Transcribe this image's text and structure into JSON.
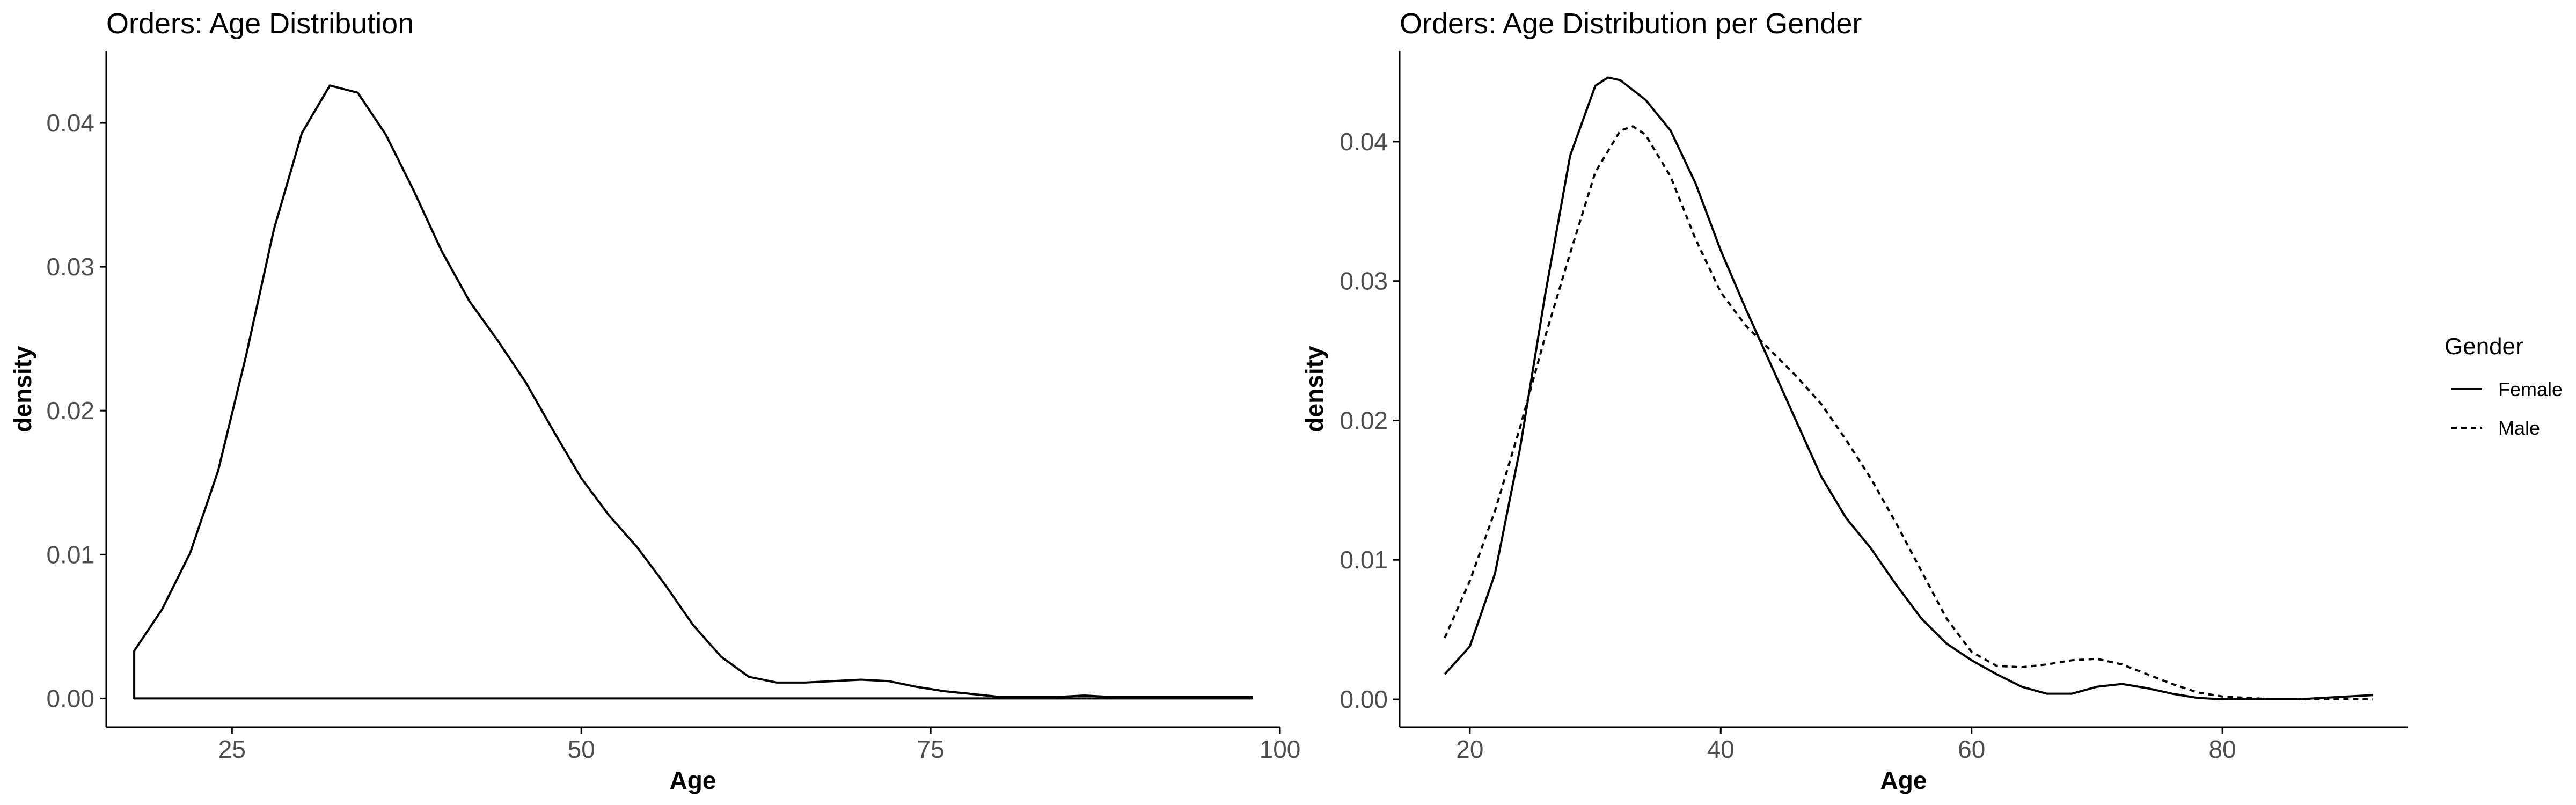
{
  "chart_data": [
    {
      "type": "line",
      "title": "Orders: Age Distribution",
      "xlabel": "Age",
      "ylabel": "density",
      "xlim": [
        16,
        100
      ],
      "ylim": [
        -0.002,
        0.045
      ],
      "xticks": [
        25,
        50,
        75,
        100
      ],
      "yticks": [
        0.0,
        0.01,
        0.02,
        0.03,
        0.04
      ],
      "grid": false,
      "legend": "none",
      "series": [
        {
          "style": "solid",
          "closed_baseline": true,
          "x": [
            18,
            20,
            22,
            24,
            26,
            28,
            30,
            32,
            34,
            36,
            38,
            40,
            42,
            44,
            46,
            48,
            50,
            52,
            54,
            56,
            58,
            60,
            62,
            64,
            66,
            68,
            70,
            72,
            74,
            76,
            78,
            80,
            82,
            84,
            86,
            88,
            90,
            92,
            94,
            96,
            98
          ],
          "y": [
            0.0033,
            0.0062,
            0.0101,
            0.0158,
            0.0238,
            0.0326,
            0.0393,
            0.0426,
            0.0421,
            0.0392,
            0.0353,
            0.0311,
            0.0276,
            0.0249,
            0.022,
            0.0186,
            0.0153,
            0.0127,
            0.0105,
            0.0079,
            0.0051,
            0.0029,
            0.0015,
            0.0011,
            0.0011,
            0.0012,
            0.0013,
            0.0012,
            0.0008,
            0.0005,
            0.0003,
            0.0001,
            0.0001,
            0.0001,
            0.0002,
            0.0001,
            0.0001,
            0.0001,
            0.0001,
            0.0001,
            0.0001
          ]
        }
      ]
    },
    {
      "type": "line",
      "title": "Orders: Age Distribution per Gender",
      "xlabel": "Age",
      "ylabel": "density",
      "xlim": [
        14.4,
        94.8
      ],
      "ylim": [
        -0.002,
        0.0465
      ],
      "xticks": [
        20,
        40,
        60,
        80
      ],
      "yticks": [
        0.0,
        0.01,
        0.02,
        0.03,
        0.04
      ],
      "grid": false,
      "legend": "right",
      "legend_title": "Gender",
      "series": [
        {
          "name": "Female",
          "style": "solid",
          "x": [
            18,
            20,
            22,
            24,
            26,
            28,
            30,
            31,
            32,
            34,
            36,
            38,
            40,
            42,
            44,
            46,
            48,
            50,
            52,
            54,
            56,
            58,
            60,
            62,
            64,
            66,
            68,
            70,
            72,
            74,
            76,
            78,
            80,
            82,
            84,
            86,
            88,
            90,
            92
          ],
          "y": [
            0.0018,
            0.0038,
            0.009,
            0.018,
            0.029,
            0.039,
            0.044,
            0.0446,
            0.0444,
            0.043,
            0.0408,
            0.037,
            0.0322,
            0.028,
            0.024,
            0.02,
            0.016,
            0.013,
            0.0108,
            0.0082,
            0.0058,
            0.004,
            0.0028,
            0.0018,
            0.0009,
            0.0004,
            0.0004,
            0.0009,
            0.0011,
            0.0008,
            0.0004,
            0.0001,
            0.0,
            0.0,
            0.0,
            0.0,
            0.0001,
            0.0002,
            0.0003
          ]
        },
        {
          "name": "Male",
          "style": "dashed",
          "x": [
            18,
            20,
            22,
            24,
            26,
            28,
            30,
            32,
            33,
            34,
            36,
            38,
            40,
            42,
            44,
            46,
            48,
            50,
            52,
            54,
            56,
            58,
            60,
            62,
            64,
            66,
            68,
            70,
            72,
            74,
            76,
            78,
            80,
            82,
            84,
            86,
            88,
            90,
            92
          ],
          "y": [
            0.0044,
            0.0085,
            0.0135,
            0.0195,
            0.026,
            0.032,
            0.0378,
            0.0408,
            0.0411,
            0.0405,
            0.0375,
            0.033,
            0.0292,
            0.0268,
            0.025,
            0.0232,
            0.0212,
            0.0186,
            0.0158,
            0.0126,
            0.0092,
            0.0058,
            0.0034,
            0.0024,
            0.0023,
            0.0025,
            0.0028,
            0.0029,
            0.0025,
            0.0018,
            0.0011,
            0.0005,
            0.0002,
            0.0001,
            0.0,
            0.0,
            0.0,
            0.0,
            0.0
          ]
        }
      ]
    }
  ]
}
